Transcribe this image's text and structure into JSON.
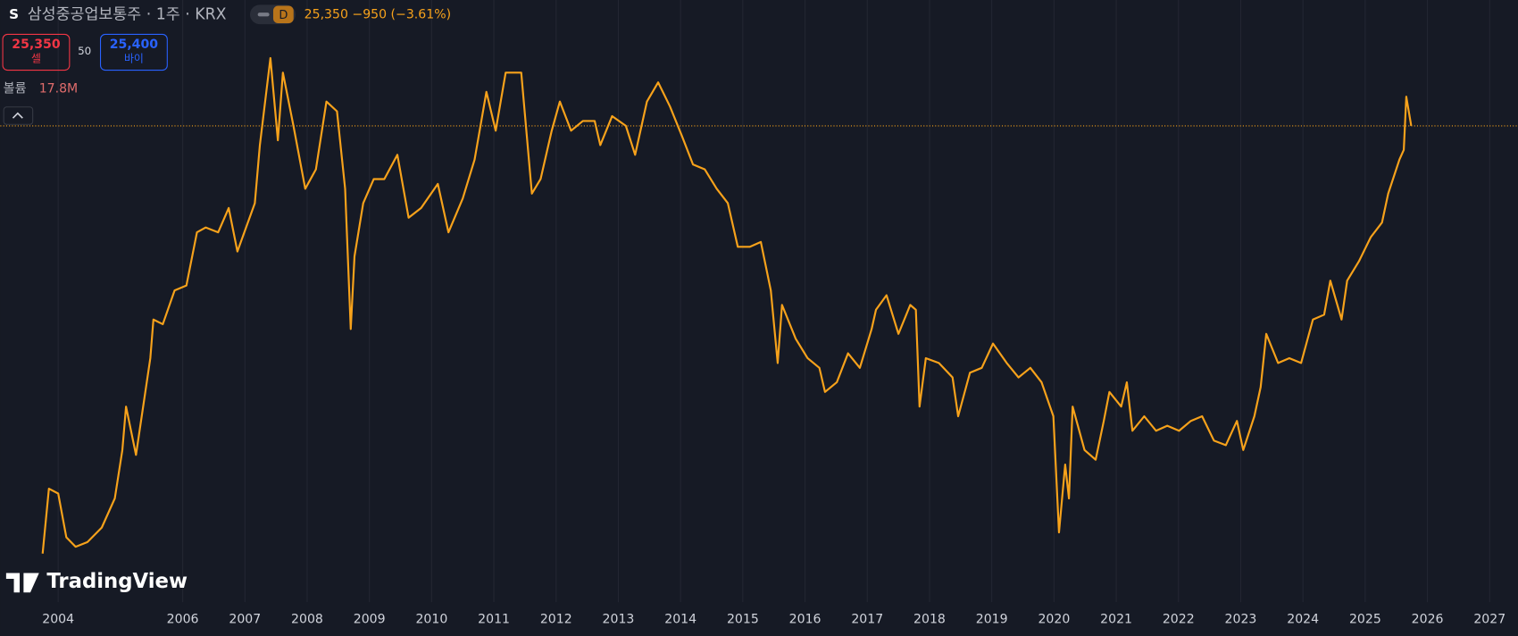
{
  "header": {
    "icon": "S",
    "title": "삼성중공업보통주 · 1주 · KRX",
    "interval": "D",
    "price": "25,350",
    "change": "−950",
    "change_pct": "(−3.61%)",
    "sell": {
      "price": "25,350",
      "label": "셀"
    },
    "spread": "50",
    "buy": {
      "price": "25,400",
      "label": "바이"
    },
    "volume": {
      "label": "볼륨",
      "value": "17.8M"
    },
    "logo": "TradingView"
  },
  "chart_data": {
    "type": "line",
    "color": "#f7a21b",
    "grid": true,
    "x": [
      2003.75,
      2003.85,
      2004.0,
      2004.13,
      2004.28,
      2004.47,
      2004.7,
      2004.91,
      2005.03,
      2005.09,
      2005.25,
      2005.33,
      2005.48,
      2005.53,
      2005.68,
      2005.87,
      2006.06,
      2006.23,
      2006.37,
      2006.57,
      2006.74,
      2006.88,
      2007.16,
      2007.24,
      2007.41,
      2007.53,
      2007.61,
      2007.78,
      2007.97,
      2008.14,
      2008.31,
      2008.48,
      2008.61,
      2008.7,
      2008.76,
      2008.9,
      2009.07,
      2009.24,
      2009.45,
      2009.63,
      2009.83,
      2010.1,
      2010.27,
      2010.5,
      2010.69,
      2010.88,
      2011.03,
      2011.19,
      2011.44,
      2011.61,
      2011.75,
      2011.93,
      2012.06,
      2012.24,
      2012.43,
      2012.62,
      2012.71,
      2012.9,
      2013.12,
      2013.27,
      2013.46,
      2013.64,
      2013.83,
      2014.02,
      2014.2,
      2014.39,
      2014.58,
      2014.76,
      2014.92,
      2015.11,
      2015.29,
      2015.45,
      2015.56,
      2015.63,
      2015.85,
      2016.04,
      2016.23,
      2016.32,
      2016.51,
      2016.69,
      2016.88,
      2017.07,
      2017.14,
      2017.31,
      2017.5,
      2017.69,
      2017.78,
      2017.84,
      2017.94,
      2018.15,
      2018.37,
      2018.46,
      2018.65,
      2018.84,
      2019.02,
      2019.24,
      2019.43,
      2019.62,
      2019.8,
      2019.99,
      2020.08,
      2020.18,
      2020.24,
      2020.3,
      2020.49,
      2020.67,
      2020.8,
      2020.89,
      2021.08,
      2021.17,
      2021.26,
      2021.45,
      2021.64,
      2021.82,
      2022.01,
      2022.2,
      2022.38,
      2022.57,
      2022.76,
      2022.94,
      2023.04,
      2023.22,
      2023.32,
      2023.41,
      2023.6,
      2023.78,
      2023.97,
      2024.16,
      2024.34,
      2024.44,
      2024.62,
      2024.71,
      2024.9,
      2025.09,
      2025.27,
      2025.37,
      2025.55,
      2025.62,
      2025.66,
      2025.74
    ],
    "values": [
      4210,
      7420,
      7180,
      5020,
      4550,
      4780,
      5500,
      6940,
      9330,
      11480,
      9090,
      10770,
      13870,
      15780,
      15550,
      17220,
      17460,
      20090,
      20330,
      20090,
      21290,
      19140,
      21530,
      24400,
      28700,
      24640,
      27980,
      25350,
      22240,
      23200,
      26550,
      26070,
      22240,
      15310,
      18900,
      21530,
      22720,
      22720,
      23920,
      20810,
      21290,
      22480,
      20090,
      21770,
      23680,
      27030,
      25110,
      27980,
      27980,
      22000,
      22720,
      25110,
      26550,
      25110,
      25590,
      25590,
      24400,
      25830,
      25350,
      23920,
      26550,
      27500,
      26310,
      24870,
      23440,
      23200,
      22240,
      21530,
      19370,
      19370,
      19610,
      17220,
      13630,
      16500,
      14830,
      13870,
      13390,
      12200,
      12680,
      14110,
      13390,
      15310,
      16260,
      16980,
      15070,
      16500,
      16260,
      11480,
      13870,
      13630,
      12920,
      11000,
      13150,
      13390,
      14590,
      13630,
      12920,
      13390,
      12680,
      11000,
      5260,
      8610,
      6940,
      11480,
      9330,
      8850,
      10770,
      12200,
      11480,
      12680,
      10280,
      11000,
      10280,
      10530,
      10280,
      10770,
      11000,
      9800,
      9570,
      10770,
      9330,
      11000,
      12440,
      15070,
      13630,
      13870,
      13630,
      15780,
      16020,
      17700,
      15780,
      17700,
      18660,
      19850,
      20570,
      22000,
      23680,
      24160,
      26790,
      25350
    ],
    "xlim": [
      2003.07,
      2027.45
    ],
    "ylim": [
      140,
      31570
    ],
    "xticks": [
      2004,
      2006,
      2007,
      2008,
      2009,
      2010,
      2011,
      2012,
      2013,
      2014,
      2015,
      2016,
      2017,
      2018,
      2019,
      2020,
      2021,
      2022,
      2023,
      2024,
      2025,
      2026,
      2027
    ]
  }
}
